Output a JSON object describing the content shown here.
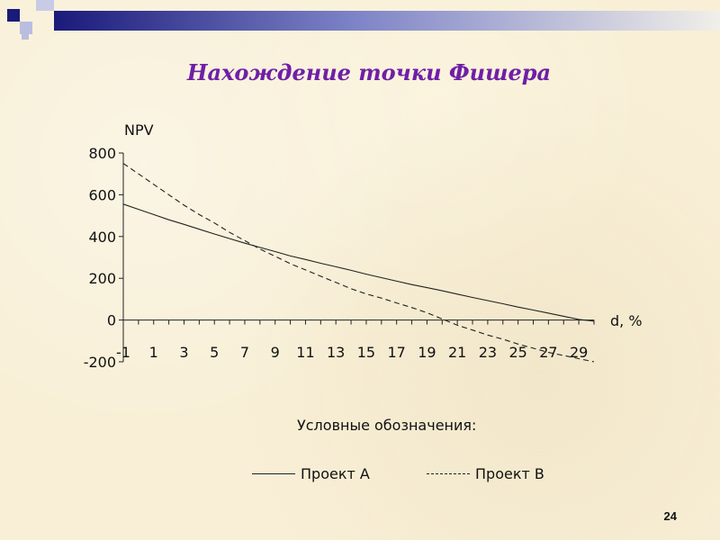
{
  "slide": {
    "title": "Нахождение точки Фишера",
    "page_number": "24"
  },
  "colors": {
    "title": "#6f1fa6",
    "deco_dark": "#1a1a7a",
    "deco_light": "#b9bde0",
    "line": "#222222"
  },
  "legend": {
    "title": "Условные обозначения:",
    "items": [
      "Проект А",
      "Проект В"
    ]
  },
  "chart_data": {
    "type": "line",
    "title": "",
    "ylabel": "NPV",
    "xlabel": "d, %",
    "x": [
      -1,
      0,
      1,
      2,
      3,
      4,
      5,
      6,
      7,
      8,
      9,
      10,
      11,
      12,
      13,
      14,
      15,
      16,
      17,
      18,
      19,
      20,
      21,
      22,
      23,
      24,
      25,
      26,
      27,
      28,
      29,
      30
    ],
    "x_tick_labels": [
      "-1",
      "1",
      "3",
      "5",
      "7",
      "9",
      "11",
      "13",
      "15",
      "17",
      "19",
      "21",
      "23",
      "25",
      "27",
      "29"
    ],
    "y_ticks": [
      -200,
      0,
      200,
      400,
      600,
      800
    ],
    "ylim": [
      -200,
      800
    ],
    "series": [
      {
        "name": "Проект А",
        "style": "solid",
        "values": [
          555,
          530,
          505,
          480,
          458,
          435,
          412,
          390,
          368,
          348,
          328,
          307,
          290,
          272,
          255,
          238,
          220,
          203,
          186,
          170,
          155,
          140,
          124,
          108,
          93,
          78,
          62,
          48,
          33,
          18,
          3,
          -5
        ]
      },
      {
        "name": "Проект В",
        "style": "dashed",
        "values": [
          750,
          700,
          650,
          600,
          550,
          505,
          465,
          420,
          380,
          340,
          305,
          270,
          240,
          210,
          180,
          150,
          125,
          105,
          82,
          60,
          35,
          5,
          -25,
          -48,
          -72,
          -92,
          -115,
          -135,
          -155,
          -170,
          -185,
          -200
        ]
      }
    ]
  }
}
